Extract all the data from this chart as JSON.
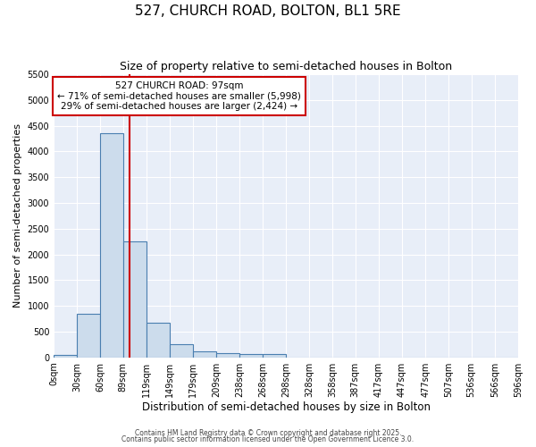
{
  "title": "527, CHURCH ROAD, BOLTON, BL1 5RE",
  "subtitle": "Size of property relative to semi-detached houses in Bolton",
  "xlabel": "Distribution of semi-detached houses by size in Bolton",
  "ylabel": "Number of semi-detached properties",
  "bin_edges": [
    0,
    30,
    60,
    89,
    119,
    149,
    179,
    209,
    238,
    268,
    298,
    328,
    358,
    387,
    417,
    447,
    477,
    507,
    536,
    566,
    596
  ],
  "bar_heights": [
    50,
    850,
    4350,
    2250,
    680,
    250,
    120,
    80,
    60,
    60,
    0,
    0,
    0,
    0,
    0,
    0,
    0,
    0,
    0,
    0
  ],
  "bar_color": "#ccdcec",
  "bar_edge_color": "#4a7fb0",
  "property_size": 97,
  "red_line_color": "#cc0000",
  "annotation_text": "527 CHURCH ROAD: 97sqm\n← 71% of semi-detached houses are smaller (5,998)\n29% of semi-detached houses are larger (2,424) →",
  "annotation_box_facecolor": "#ffffff",
  "annotation_box_edgecolor": "#cc0000",
  "ylim": [
    0,
    5500
  ],
  "yticks": [
    0,
    500,
    1000,
    1500,
    2000,
    2500,
    3000,
    3500,
    4000,
    4500,
    5000,
    5500
  ],
  "fig_facecolor": "#ffffff",
  "axes_facecolor": "#e8eef8",
  "grid_color": "#ffffff",
  "footer_line1": "Contains HM Land Registry data © Crown copyright and database right 2025.",
  "footer_line2": "Contains public sector information licensed under the Open Government Licence 3.0."
}
